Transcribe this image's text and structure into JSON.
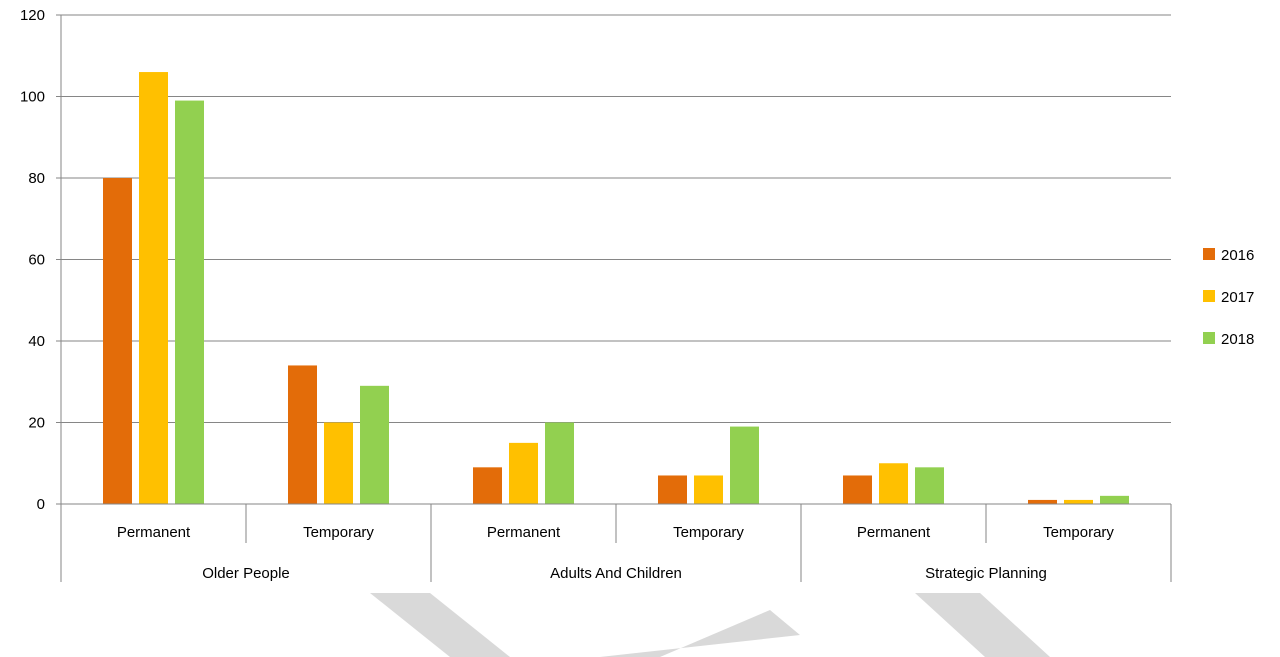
{
  "chart_data": {
    "type": "bar",
    "title": "",
    "xlabel": "",
    "ylabel": "",
    "ylim": [
      0,
      120
    ],
    "yticks": [
      0,
      20,
      40,
      60,
      80,
      100,
      120
    ],
    "grid": true,
    "legend_position": "right",
    "groups": [
      {
        "label": "Older People",
        "categories": [
          "Permanent",
          "Temporary"
        ]
      },
      {
        "label": "Adults And Children",
        "categories": [
          "Permanent",
          "Temporary"
        ]
      },
      {
        "label": "Strategic Planning",
        "categories": [
          "Permanent",
          "Temporary"
        ]
      }
    ],
    "series": [
      {
        "name": "2016",
        "color": "#E36C09",
        "values": [
          80,
          34,
          9,
          7,
          7,
          1
        ]
      },
      {
        "name": "2017",
        "color": "#FFC000",
        "values": [
          106,
          20,
          15,
          7,
          10,
          1
        ]
      },
      {
        "name": "2018",
        "color": "#92D050",
        "values": [
          99,
          29,
          20,
          19,
          9,
          2
        ]
      }
    ]
  },
  "watermark": {
    "color": "#D9D9D9"
  }
}
